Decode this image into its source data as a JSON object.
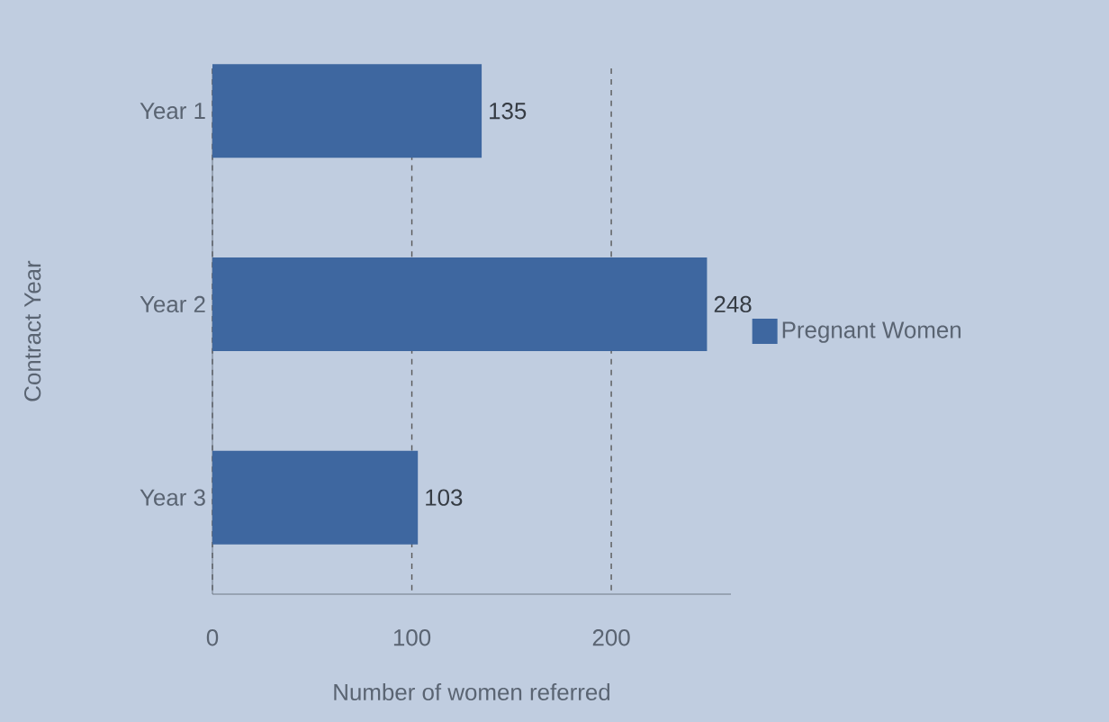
{
  "chart_data": {
    "type": "bar",
    "orientation": "horizontal",
    "categories": [
      "Year 1",
      "Year 2",
      "Year 3"
    ],
    "series": [
      {
        "name": "Pregnant Women",
        "color": "#3e67a0",
        "values": [
          135,
          248,
          103
        ]
      }
    ],
    "xlabel": "Number of women referred",
    "ylabel": "Contract Year",
    "xlim": [
      0,
      260
    ],
    "xticks": [
      0,
      100,
      200
    ],
    "grid": "x",
    "legend": "right",
    "data_labels": true
  }
}
